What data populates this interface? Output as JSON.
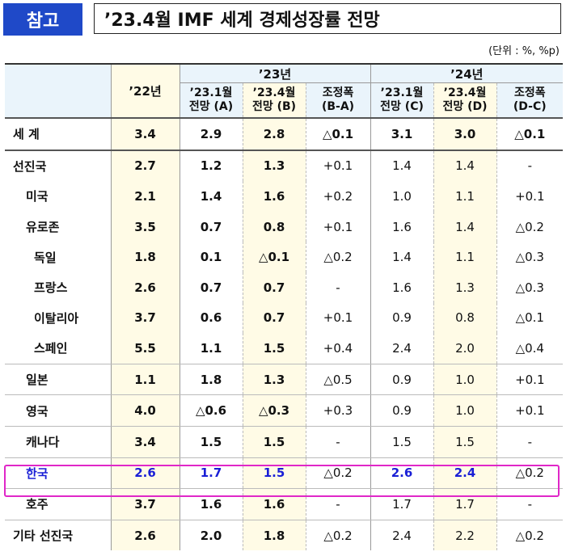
{
  "header": {
    "badge": "참고",
    "title": "’23.4월 IMF 세계 경제성장률 전망",
    "unit": "(단위 : %, %p)"
  },
  "table": {
    "year23": "’23년",
    "year24": "’24년",
    "col22": "’22년",
    "sub": [
      "’23.1월",
      "전망 (A)",
      "’23.4월",
      "전망 (B)",
      "조정폭",
      "(B-A)",
      "’23.1월",
      "전망 (C)",
      "’23.4월",
      "전망 (D)",
      "조정폭",
      "(D-C)"
    ],
    "rows": [
      {
        "name": "세    계",
        "v": [
          "3.4",
          "2.9",
          "2.8",
          "△0.1",
          "3.1",
          "3.0",
          "△0.1"
        ]
      },
      {
        "name": "선진국",
        "v": [
          "2.7",
          "1.2",
          "1.3",
          "+0.1",
          "1.4",
          "1.4",
          "-"
        ]
      },
      {
        "name": "미국",
        "v": [
          "2.1",
          "1.4",
          "1.6",
          "+0.2",
          "1.0",
          "1.1",
          "+0.1"
        ]
      },
      {
        "name": "유로존",
        "v": [
          "3.5",
          "0.7",
          "0.8",
          "+0.1",
          "1.6",
          "1.4",
          "△0.2"
        ]
      },
      {
        "name": "독일",
        "v": [
          "1.8",
          "0.1",
          "△0.1",
          "△0.2",
          "1.4",
          "1.1",
          "△0.3"
        ]
      },
      {
        "name": "프랑스",
        "v": [
          "2.6",
          "0.7",
          "0.7",
          "-",
          "1.6",
          "1.3",
          "△0.3"
        ]
      },
      {
        "name": "이탈리아",
        "v": [
          "3.7",
          "0.6",
          "0.7",
          "+0.1",
          "0.9",
          "0.8",
          "△0.1"
        ]
      },
      {
        "name": "스페인",
        "v": [
          "5.5",
          "1.1",
          "1.5",
          "+0.4",
          "2.4",
          "2.0",
          "△0.4"
        ]
      },
      {
        "name": "일본",
        "v": [
          "1.1",
          "1.8",
          "1.3",
          "△0.5",
          "0.9",
          "1.0",
          "+0.1"
        ]
      },
      {
        "name": "영국",
        "v": [
          "4.0",
          "△0.6",
          "△0.3",
          "+0.3",
          "0.9",
          "1.0",
          "+0.1"
        ]
      },
      {
        "name": "캐나다",
        "v": [
          "3.4",
          "1.5",
          "1.5",
          "-",
          "1.5",
          "1.5",
          "-"
        ]
      },
      {
        "name": "한국",
        "v": [
          "2.6",
          "1.7",
          "1.5",
          "△0.2",
          "2.6",
          "2.4",
          "△0.2"
        ]
      },
      {
        "name": "호주",
        "v": [
          "3.7",
          "1.6",
          "1.6",
          "-",
          "1.7",
          "1.7",
          "-"
        ]
      },
      {
        "name": "기타 선진국",
        "v": [
          "2.6",
          "2.0",
          "1.8",
          "△0.2",
          "2.4",
          "2.2",
          "△0.2"
        ]
      }
    ]
  }
}
